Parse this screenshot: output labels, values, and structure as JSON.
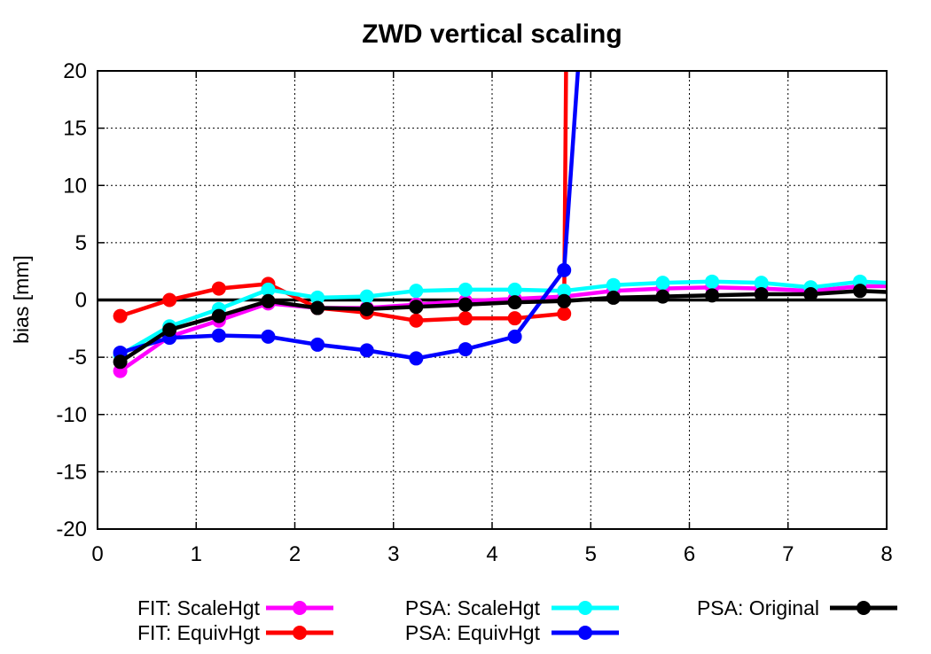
{
  "chart_data": {
    "type": "line",
    "title": "ZWD vertical scaling",
    "xlabel": "",
    "ylabel": "bias [mm]",
    "xlim": [
      0,
      8
    ],
    "ylim": [
      -20,
      20
    ],
    "xticks": [
      "0",
      "1",
      "2",
      "3",
      "4",
      "5",
      "6",
      "7",
      "8"
    ],
    "yticks": [
      "-20",
      "-15",
      "-10",
      "-5",
      "0",
      "5",
      "10",
      "15",
      "20"
    ],
    "grid": true,
    "legend_position": "bottom",
    "series": [
      {
        "name": "FIT: ScaleHgt",
        "color": "#ff00ff",
        "points": [
          [
            0.23,
            -6.2
          ],
          [
            0.73,
            -3.2
          ],
          [
            1.23,
            -1.8
          ],
          [
            1.73,
            -0.3
          ],
          [
            2.23,
            -0.7
          ],
          [
            2.73,
            -0.7
          ],
          [
            3.23,
            -0.4
          ],
          [
            3.73,
            -0.1
          ],
          [
            4.23,
            0.1
          ],
          [
            4.73,
            0.3
          ],
          [
            5.23,
            0.8
          ],
          [
            5.73,
            1.0
          ],
          [
            6.23,
            1.1
          ],
          [
            6.73,
            1.0
          ],
          [
            7.23,
            0.8
          ],
          [
            7.73,
            1.2
          ],
          [
            8.0,
            1.2
          ]
        ]
      },
      {
        "name": "FIT: EquivHgt",
        "color": "#ff0000",
        "points": [
          [
            0.23,
            -1.4
          ],
          [
            0.73,
            0.0
          ],
          [
            1.23,
            1.0
          ],
          [
            1.73,
            1.4
          ],
          [
            2.23,
            -0.7
          ],
          [
            2.73,
            -1.1
          ],
          [
            3.23,
            -1.8
          ],
          [
            3.73,
            -1.6
          ],
          [
            4.23,
            -1.6
          ],
          [
            4.73,
            -1.2
          ],
          [
            4.75,
            20.0
          ]
        ]
      },
      {
        "name": "PSA: ScaleHgt",
        "color": "#00ffff",
        "points": [
          [
            0.23,
            -4.8
          ],
          [
            0.73,
            -2.3
          ],
          [
            1.23,
            -0.8
          ],
          [
            1.73,
            0.9
          ],
          [
            2.23,
            0.2
          ],
          [
            2.73,
            0.3
          ],
          [
            3.23,
            0.8
          ],
          [
            3.73,
            0.9
          ],
          [
            4.23,
            0.9
          ],
          [
            4.73,
            0.8
          ],
          [
            5.23,
            1.3
          ],
          [
            5.73,
            1.5
          ],
          [
            6.23,
            1.6
          ],
          [
            6.73,
            1.5
          ],
          [
            7.23,
            1.1
          ],
          [
            7.73,
            1.6
          ],
          [
            8.0,
            1.5
          ]
        ]
      },
      {
        "name": "PSA: EquivHgt",
        "color": "#0000ff",
        "points": [
          [
            0.23,
            -4.6
          ],
          [
            0.73,
            -3.3
          ],
          [
            1.23,
            -3.1
          ],
          [
            1.73,
            -3.2
          ],
          [
            2.23,
            -3.9
          ],
          [
            2.73,
            -4.4
          ],
          [
            3.23,
            -5.1
          ],
          [
            3.73,
            -4.3
          ],
          [
            4.23,
            -3.2
          ],
          [
            4.73,
            2.6
          ],
          [
            4.87,
            20.0
          ]
        ]
      },
      {
        "name": "PSA: Original",
        "color": "#000000",
        "points": [
          [
            0.23,
            -5.4
          ],
          [
            0.73,
            -2.6
          ],
          [
            1.23,
            -1.4
          ],
          [
            1.73,
            -0.1
          ],
          [
            2.23,
            -0.7
          ],
          [
            2.73,
            -0.8
          ],
          [
            3.23,
            -0.6
          ],
          [
            3.73,
            -0.4
          ],
          [
            4.23,
            -0.2
          ],
          [
            4.73,
            -0.1
          ],
          [
            5.23,
            0.2
          ],
          [
            5.73,
            0.3
          ],
          [
            6.23,
            0.4
          ],
          [
            6.73,
            0.5
          ],
          [
            7.23,
            0.5
          ],
          [
            7.73,
            0.8
          ],
          [
            8.0,
            0.7
          ]
        ]
      }
    ]
  }
}
